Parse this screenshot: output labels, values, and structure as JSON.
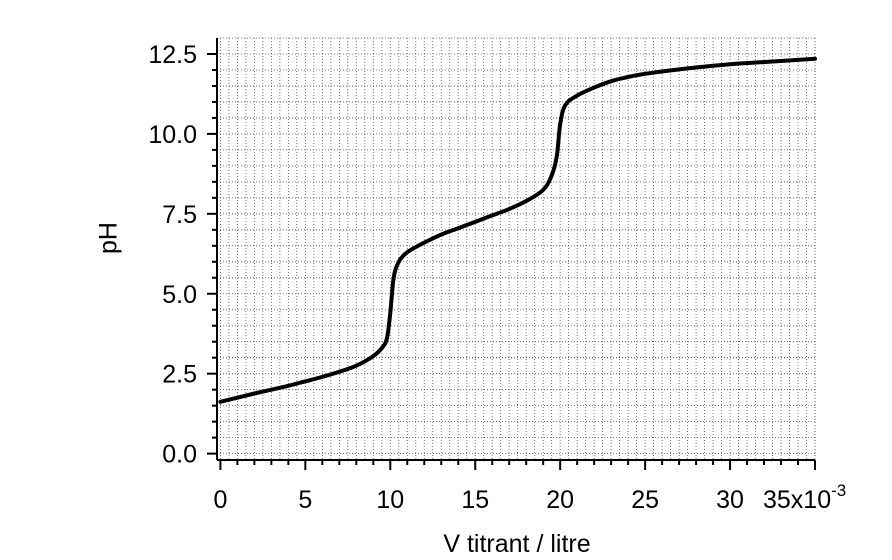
{
  "chart_data": {
    "type": "line",
    "xlabel": "V titrant / litre",
    "xlabel_exponent": "-3",
    "ylabel": "pH",
    "x": [
      0,
      1,
      2,
      3,
      4,
      5,
      6,
      7,
      8,
      9,
      9.5,
      9.8,
      10,
      10.2,
      10.5,
      11,
      12,
      13,
      14,
      15,
      16,
      17,
      18,
      19,
      19.5,
      19.8,
      20,
      20.3,
      21,
      22,
      23,
      24,
      25,
      27,
      30,
      33,
      35
    ],
    "series": [
      {
        "color": "#000000",
        "values": [
          1.62,
          1.75,
          1.88,
          2.0,
          2.12,
          2.26,
          2.4,
          2.56,
          2.75,
          3.05,
          3.3,
          3.6,
          4.4,
          5.5,
          6.0,
          6.3,
          6.6,
          6.85,
          7.05,
          7.25,
          7.45,
          7.65,
          7.9,
          8.25,
          8.7,
          9.3,
          10.3,
          10.9,
          11.2,
          11.45,
          11.65,
          11.78,
          11.88,
          12.02,
          12.18,
          12.28,
          12.35
        ]
      }
    ],
    "xlim": [
      -0.2,
      35
    ],
    "ylim": [
      -0.2,
      13
    ],
    "xticks": [
      0,
      5,
      10,
      15,
      20,
      25,
      30,
      {
        "value": 35,
        "label": "35x10"
      }
    ],
    "yticks": [
      {
        "value": 0,
        "label": "0.0"
      },
      2.5,
      {
        "value": 5,
        "label": "5.0"
      },
      7.5,
      {
        "value": 10,
        "label": "10.0"
      },
      12.5
    ],
    "grid": true,
    "minor_grid": true
  }
}
